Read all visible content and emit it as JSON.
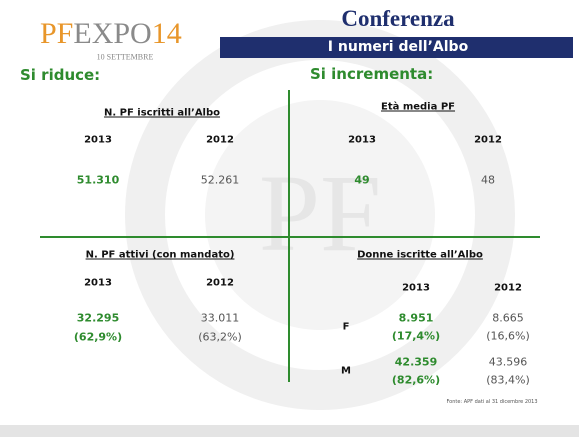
{
  "logo": {
    "left": "PF",
    "middle": "EXPO",
    "right": "14",
    "date": "10 SETTEMBRE"
  },
  "header": {
    "title": "Conferenza",
    "subtitle": "I numeri dell’Albo"
  },
  "sections": {
    "left": "Si riduce:",
    "right": "Si incrementa:"
  },
  "quadrants": [
    {
      "title": "N. PF iscritti all’Albo",
      "years": [
        "2013",
        "2012"
      ],
      "values": [
        "51.310",
        "52.261"
      ]
    },
    {
      "title": "Età media PF",
      "years": [
        "2013",
        "2012"
      ],
      "values": [
        "49",
        "48"
      ]
    },
    {
      "title": "N. PF attivi (con mandato)",
      "years": [
        "2013",
        "2012"
      ],
      "values": [
        "32.295",
        "33.011"
      ],
      "shares": [
        "(62,9%)",
        "(63,2%)"
      ]
    },
    {
      "title": "Donne iscritte all’Albo",
      "years": [
        "2013",
        "2012"
      ],
      "rows": [
        {
          "label": "F",
          "values": [
            "8.951",
            "8.665"
          ],
          "shares": [
            "(17,4%)",
            "(16,6%)"
          ]
        },
        {
          "label": "M",
          "values": [
            "42.359",
            "43.596"
          ],
          "shares": [
            "(82,6%)",
            "(83,4%)"
          ]
        }
      ]
    }
  ],
  "footnote": "Fonte: APF dati al 31 dicembre 2013"
}
